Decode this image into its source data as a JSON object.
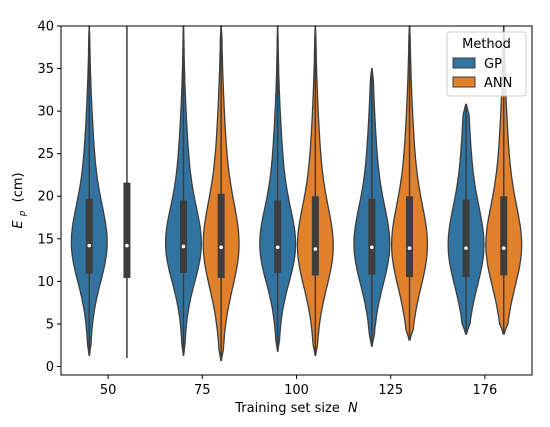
{
  "chart_data": {
    "type": "violin",
    "title": "",
    "xlabel": "Training set size",
    "xlabel_symbol": "N",
    "ylabel": "E",
    "ylabel_sub": "p",
    "ylabel_unit": "(cm)",
    "ylim": [
      -1,
      40
    ],
    "yticks": [
      0,
      5,
      10,
      15,
      20,
      25,
      30,
      35,
      40
    ],
    "categories": [
      "50",
      "75",
      "100",
      "125",
      "176"
    ],
    "grid": false,
    "legend": {
      "title": "Method",
      "placement": "top-right"
    },
    "series": [
      {
        "name": "GP",
        "color": "#3274a1",
        "stats": [
          {
            "min": 1.3,
            "q1": 10.9,
            "median": 14.2,
            "q3": 19.7,
            "max": 40
          },
          {
            "min": 1.3,
            "q1": 11.0,
            "median": 14.1,
            "q3": 19.5,
            "max": 40
          },
          {
            "min": 1.8,
            "q1": 11.0,
            "median": 14.0,
            "q3": 19.5,
            "max": 40
          },
          {
            "min": 2.4,
            "q1": 10.8,
            "median": 14.0,
            "q3": 19.7,
            "max": 35
          },
          {
            "min": 3.8,
            "q1": 10.5,
            "median": 13.9,
            "q3": 19.6,
            "max": 30.8
          }
        ]
      },
      {
        "name": "ANN",
        "color": "#e1812c",
        "stats": [
          {
            "min": 1.0,
            "q1": 10.4,
            "median": 14.2,
            "q3": 21.6,
            "max": 40
          },
          {
            "min": 0.7,
            "q1": 10.4,
            "median": 14.0,
            "q3": 20.3,
            "max": 40
          },
          {
            "min": 1.3,
            "q1": 10.7,
            "median": 13.8,
            "q3": 20.0,
            "max": 40
          },
          {
            "min": 3.1,
            "q1": 10.5,
            "median": 13.9,
            "q3": 20.0,
            "max": 40
          },
          {
            "min": 3.8,
            "q1": 10.7,
            "median": 13.9,
            "q3": 20.0,
            "max": 40
          }
        ]
      }
    ]
  }
}
